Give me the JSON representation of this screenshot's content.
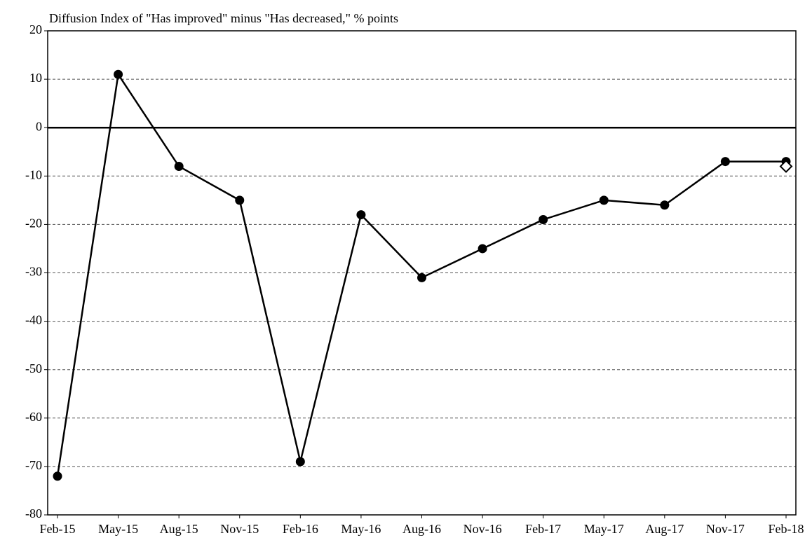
{
  "chart_data": {
    "type": "line",
    "y_axis_label": "Diffusion Index of \"Has improved\" minus \"Has decreased,\" % points",
    "categories": [
      "Feb-15",
      "May-15",
      "Aug-15",
      "Nov-15",
      "Feb-16",
      "May-16",
      "Aug-16",
      "Nov-16",
      "Feb-17",
      "May-17",
      "Aug-17",
      "Nov-17",
      "Feb-18"
    ],
    "series": [
      {
        "color": "#000000",
        "marker": "circle",
        "values": [
          -72,
          11,
          -8,
          -15,
          -69,
          -18,
          -31,
          -25,
          -19,
          -15,
          -16,
          -7,
          -7
        ]
      },
      {
        "color": "#000000",
        "marker": "diamond",
        "values": [
          null,
          null,
          null,
          null,
          null,
          null,
          null,
          null,
          null,
          null,
          null,
          null,
          -8
        ]
      }
    ],
    "ylim": [
      -80,
      20
    ],
    "yticks": [
      -80,
      -70,
      -60,
      -50,
      -40,
      -30,
      -20,
      -10,
      0,
      10,
      20
    ],
    "grid": true
  }
}
